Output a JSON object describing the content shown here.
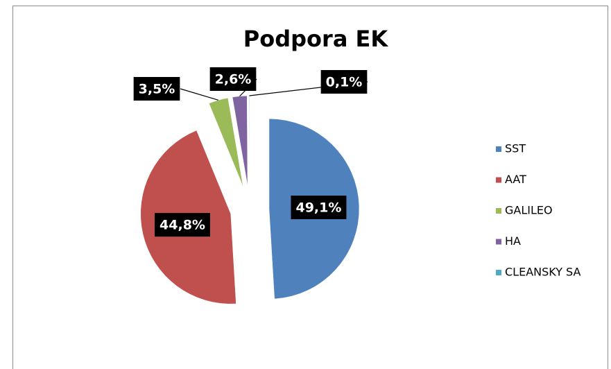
{
  "chart_data": {
    "type": "pie",
    "title": "Podpora EK",
    "categories": [
      "SST",
      "AAT",
      "GALILEO",
      "HA",
      "CLEANSKY SA"
    ],
    "values": [
      49.1,
      44.8,
      3.5,
      2.6,
      0.1
    ],
    "value_labels": [
      "49,1%",
      "44,8%",
      "3,5%",
      "2,6%",
      "0,1%"
    ],
    "colors": [
      "#4f81bd",
      "#c0504d",
      "#9bbb59",
      "#8064a2",
      "#4bacc6"
    ],
    "legend": "right"
  }
}
